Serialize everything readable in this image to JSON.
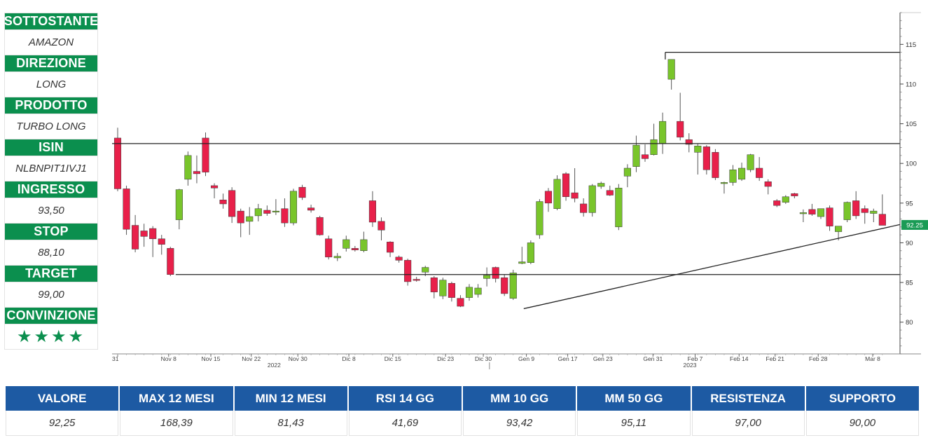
{
  "panel": [
    {
      "label": "SOTTOSTANTE",
      "value": "AMAZON"
    },
    {
      "label": "DIREZIONE",
      "value": "LONG"
    },
    {
      "label": "PRODOTTO",
      "value": "TURBO LONG"
    },
    {
      "label": "ISIN",
      "value": "NLBNPIT1IVJ1"
    },
    {
      "label": "INGRESSO",
      "value": "93,50"
    },
    {
      "label": "STOP",
      "value": "88,10"
    },
    {
      "label": "TARGET",
      "value": "99,00"
    },
    {
      "label": "CONVINZIONE",
      "value": "★★★★"
    }
  ],
  "stats": [
    {
      "label": "VALORE",
      "value": "92,25"
    },
    {
      "label": "MAX 12 MESI",
      "value": "168,39"
    },
    {
      "label": "MIN 12 MESI",
      "value": "81,43"
    },
    {
      "label": "RSI 14 GG",
      "value": "41,69"
    },
    {
      "label": "MM 10 GG",
      "value": "93,42"
    },
    {
      "label": "MM 50 GG",
      "value": "95,11"
    },
    {
      "label": "RESISTENZA",
      "value": "97,00"
    },
    {
      "label": "SUPPORTO",
      "value": "90,00"
    }
  ],
  "colors": {
    "up": "#79c52b",
    "down": "#e8204a",
    "panel_green": "#0b8f4e",
    "table_blue": "#1d5aa3",
    "price_tag": "#1a9b55"
  },
  "chart_data": {
    "type": "candlestick",
    "ylim": [
      76,
      119
    ],
    "y_ticks": [
      80,
      85,
      90,
      95,
      100,
      105,
      110,
      115
    ],
    "last_price_label": "92.25",
    "x_tick_labels": [
      {
        "label": "31",
        "index": 0
      },
      {
        "label": "Nov 8",
        "index": 5.8
      },
      {
        "label": "Nov 15",
        "index": 10.6
      },
      {
        "label": "Nov 22",
        "index": 15.2
      },
      {
        "label": "Nov 30",
        "index": 20.5
      },
      {
        "label": "Dic 8",
        "index": 26.3
      },
      {
        "label": "Dic 15",
        "index": 31.3
      },
      {
        "label": "Dic 23",
        "index": 37.3
      },
      {
        "label": "Dic 30",
        "index": 41.6
      },
      {
        "label": "Gen 9",
        "index": 46.5
      },
      {
        "label": "Gen 17",
        "index": 51.2
      },
      {
        "label": "Gen 23",
        "index": 55.2
      },
      {
        "label": "Gen 31",
        "index": 60.9
      },
      {
        "label": "Feb 7",
        "index": 65.7
      },
      {
        "label": "Feb 14",
        "index": 70.7
      },
      {
        "label": "Feb 21",
        "index": 74.8
      },
      {
        "label": "Feb 28",
        "index": 79.7
      },
      {
        "label": "Mar 8",
        "index": 85.9
      }
    ],
    "year_labels": [
      {
        "label": "2022",
        "index": 17.8
      },
      {
        "label": "2023",
        "index": 65.1
      }
    ],
    "candles": [
      {
        "o": 103.2,
        "h": 104.5,
        "l": 96.5,
        "c": 96.8
      },
      {
        "o": 96.8,
        "h": 97.2,
        "l": 91.0,
        "c": 91.7
      },
      {
        "o": 92.2,
        "h": 93.5,
        "l": 88.8,
        "c": 89.2
      },
      {
        "o": 91.5,
        "h": 92.4,
        "l": 89.5,
        "c": 90.8
      },
      {
        "o": 91.8,
        "h": 92.1,
        "l": 88.2,
        "c": 90.5
      },
      {
        "o": 90.5,
        "h": 91.0,
        "l": 88.5,
        "c": 89.8
      },
      {
        "o": 89.3,
        "h": 89.5,
        "l": 85.8,
        "c": 86.0
      },
      {
        "o": 92.9,
        "h": 96.8,
        "l": 91.7,
        "c": 96.7
      },
      {
        "o": 98.0,
        "h": 101.5,
        "l": 97.2,
        "c": 101.0
      },
      {
        "o": 99.0,
        "h": 101.0,
        "l": 97.5,
        "c": 98.7
      },
      {
        "o": 103.2,
        "h": 103.9,
        "l": 98.4,
        "c": 98.9
      },
      {
        "o": 97.2,
        "h": 97.5,
        "l": 95.6,
        "c": 96.9
      },
      {
        "o": 95.4,
        "h": 96.2,
        "l": 94.3,
        "c": 94.9
      },
      {
        "o": 96.6,
        "h": 97.0,
        "l": 92.5,
        "c": 93.3
      },
      {
        "o": 94.0,
        "h": 94.3,
        "l": 90.7,
        "c": 92.5
      },
      {
        "o": 92.7,
        "h": 94.5,
        "l": 91.0,
        "c": 93.3
      },
      {
        "o": 93.4,
        "h": 94.9,
        "l": 92.7,
        "c": 94.3
      },
      {
        "o": 94.1,
        "h": 94.7,
        "l": 93.4,
        "c": 93.7
      },
      {
        "o": 94.0,
        "h": 95.5,
        "l": 93.5,
        "c": 94.0
      },
      {
        "o": 94.3,
        "h": 95.6,
        "l": 92.0,
        "c": 92.5
      },
      {
        "o": 92.5,
        "h": 96.8,
        "l": 92.2,
        "c": 96.5
      },
      {
        "o": 97.0,
        "h": 97.3,
        "l": 95.4,
        "c": 95.7
      },
      {
        "o": 94.4,
        "h": 94.8,
        "l": 93.8,
        "c": 94.1
      },
      {
        "o": 93.2,
        "h": 93.4,
        "l": 90.9,
        "c": 91.0
      },
      {
        "o": 90.5,
        "h": 90.9,
        "l": 87.9,
        "c": 88.2
      },
      {
        "o": 88.1,
        "h": 88.7,
        "l": 87.7,
        "c": 88.3
      },
      {
        "o": 89.3,
        "h": 90.9,
        "l": 88.9,
        "c": 90.4
      },
      {
        "o": 89.3,
        "h": 89.6,
        "l": 88.9,
        "c": 89.1
      },
      {
        "o": 89.0,
        "h": 91.4,
        "l": 88.8,
        "c": 90.4
      },
      {
        "o": 95.3,
        "h": 96.5,
        "l": 92.0,
        "c": 92.6
      },
      {
        "o": 92.7,
        "h": 93.2,
        "l": 90.3,
        "c": 91.6
      },
      {
        "o": 90.1,
        "h": 90.2,
        "l": 88.2,
        "c": 88.8
      },
      {
        "o": 88.2,
        "h": 88.4,
        "l": 87.5,
        "c": 87.8
      },
      {
        "o": 87.8,
        "h": 88.0,
        "l": 84.6,
        "c": 85.1
      },
      {
        "o": 85.4,
        "h": 85.7,
        "l": 85.1,
        "c": 85.3
      },
      {
        "o": 86.3,
        "h": 87.1,
        "l": 85.8,
        "c": 86.9
      },
      {
        "o": 85.6,
        "h": 85.8,
        "l": 83.0,
        "c": 83.8
      },
      {
        "o": 83.3,
        "h": 85.6,
        "l": 82.9,
        "c": 85.3
      },
      {
        "o": 84.9,
        "h": 85.1,
        "l": 82.6,
        "c": 83.1
      },
      {
        "o": 83.0,
        "h": 83.4,
        "l": 81.9,
        "c": 82.0
      },
      {
        "o": 83.1,
        "h": 84.8,
        "l": 82.7,
        "c": 84.4
      },
      {
        "o": 83.5,
        "h": 84.8,
        "l": 83.1,
        "c": 84.3
      },
      {
        "o": 85.5,
        "h": 86.9,
        "l": 84.5,
        "c": 85.9
      },
      {
        "o": 86.9,
        "h": 87.0,
        "l": 85.0,
        "c": 85.5
      },
      {
        "o": 85.6,
        "h": 86.0,
        "l": 83.3,
        "c": 83.6
      },
      {
        "o": 83.0,
        "h": 86.6,
        "l": 82.8,
        "c": 86.2
      },
      {
        "o": 87.4,
        "h": 89.5,
        "l": 87.3,
        "c": 87.6
      },
      {
        "o": 87.5,
        "h": 90.3,
        "l": 87.3,
        "c": 90.0
      },
      {
        "o": 91.0,
        "h": 95.5,
        "l": 90.5,
        "c": 95.2
      },
      {
        "o": 96.5,
        "h": 96.9,
        "l": 93.9,
        "c": 95.0
      },
      {
        "o": 94.3,
        "h": 98.5,
        "l": 94.1,
        "c": 98.0
      },
      {
        "o": 98.7,
        "h": 98.9,
        "l": 95.3,
        "c": 95.8
      },
      {
        "o": 96.3,
        "h": 99.4,
        "l": 95.1,
        "c": 95.6
      },
      {
        "o": 94.9,
        "h": 95.6,
        "l": 93.3,
        "c": 93.8
      },
      {
        "o": 93.8,
        "h": 97.4,
        "l": 93.3,
        "c": 97.2
      },
      {
        "o": 97.1,
        "h": 97.7,
        "l": 96.8,
        "c": 97.5
      },
      {
        "o": 96.6,
        "h": 97.2,
        "l": 95.9,
        "c": 96.0
      },
      {
        "o": 92.0,
        "h": 97.4,
        "l": 91.6,
        "c": 96.9
      },
      {
        "o": 98.4,
        "h": 99.9,
        "l": 97.0,
        "c": 99.4
      },
      {
        "o": 99.6,
        "h": 103.5,
        "l": 98.9,
        "c": 102.3
      },
      {
        "o": 101.1,
        "h": 102.4,
        "l": 100.2,
        "c": 100.6
      },
      {
        "o": 101.1,
        "h": 105.0,
        "l": 101.0,
        "c": 103.0
      },
      {
        "o": 102.5,
        "h": 106.4,
        "l": 101.2,
        "c": 105.3
      },
      {
        "o": 110.6,
        "h": 113.1,
        "l": 109.3,
        "c": 113.1
      },
      {
        "o": 105.3,
        "h": 108.9,
        "l": 102.9,
        "c": 103.3
      },
      {
        "o": 103.0,
        "h": 103.8,
        "l": 101.4,
        "c": 102.4
      },
      {
        "o": 101.4,
        "h": 102.5,
        "l": 98.6,
        "c": 102.2
      },
      {
        "o": 102.1,
        "h": 102.3,
        "l": 98.6,
        "c": 99.2
      },
      {
        "o": 101.4,
        "h": 101.8,
        "l": 97.9,
        "c": 98.2
      },
      {
        "o": 97.6,
        "h": 97.7,
        "l": 96.2,
        "c": 97.6
      },
      {
        "o": 97.6,
        "h": 99.8,
        "l": 97.2,
        "c": 99.2
      },
      {
        "o": 98.0,
        "h": 100.1,
        "l": 97.8,
        "c": 99.4
      },
      {
        "o": 99.2,
        "h": 101.2,
        "l": 98.9,
        "c": 101.1
      },
      {
        "o": 99.4,
        "h": 100.8,
        "l": 97.8,
        "c": 98.2
      },
      {
        "o": 97.7,
        "h": 98.0,
        "l": 96.1,
        "c": 97.1
      },
      {
        "o": 95.3,
        "h": 95.5,
        "l": 94.5,
        "c": 94.7
      },
      {
        "o": 95.1,
        "h": 96.0,
        "l": 94.9,
        "c": 95.8
      },
      {
        "o": 96.2,
        "h": 96.3,
        "l": 95.6,
        "c": 95.9
      },
      {
        "o": 93.8,
        "h": 94.2,
        "l": 92.6,
        "c": 93.8
      },
      {
        "o": 94.2,
        "h": 94.9,
        "l": 93.4,
        "c": 93.6
      },
      {
        "o": 93.3,
        "h": 94.2,
        "l": 93.0,
        "c": 94.3
      },
      {
        "o": 94.4,
        "h": 94.7,
        "l": 91.5,
        "c": 92.1
      },
      {
        "o": 91.4,
        "h": 92.0,
        "l": 90.3,
        "c": 92.1
      },
      {
        "o": 92.9,
        "h": 95.2,
        "l": 92.6,
        "c": 95.1
      },
      {
        "o": 95.3,
        "h": 96.5,
        "l": 93.0,
        "c": 93.4
      },
      {
        "o": 94.3,
        "h": 94.7,
        "l": 92.4,
        "c": 93.8
      },
      {
        "o": 93.7,
        "h": 94.3,
        "l": 92.6,
        "c": 94.0
      },
      {
        "o": 93.6,
        "h": 96.1,
        "l": 92.2,
        "c": 92.2
      }
    ],
    "lines": [
      {
        "name": "resistance",
        "x": [
          0,
          92.2
        ],
        "y": [
          102.5,
          102.5
        ]
      },
      {
        "name": "support",
        "x": [
          6.6,
          92.2
        ],
        "y": [
          86.0,
          86.0
        ]
      },
      {
        "name": "upper",
        "x": [
          62.3,
          92.2
        ],
        "y": [
          114.0,
          114.0
        ]
      },
      {
        "name": "trendline",
        "x": [
          46.2,
          92.2
        ],
        "y": [
          81.7,
          92.3
        ]
      }
    ]
  }
}
